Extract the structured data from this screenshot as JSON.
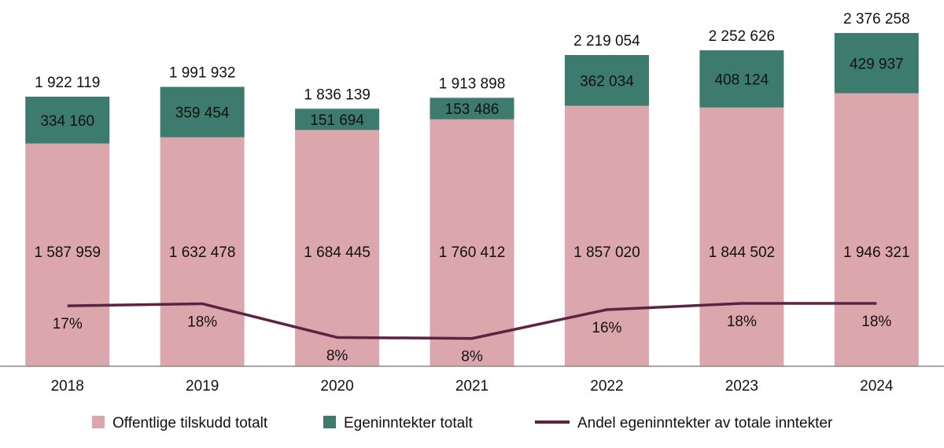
{
  "chart_data": {
    "type": "bar",
    "stacked": true,
    "categories": [
      "2018",
      "2019",
      "2020",
      "2021",
      "2022",
      "2023",
      "2024"
    ],
    "series": [
      {
        "name": "Offentlige tilskudd totalt",
        "kind": "bar",
        "color": "#DBA7AC",
        "values": [
          1587959,
          1632478,
          1684445,
          1760412,
          1857020,
          1844502,
          1946321
        ],
        "labels": [
          "1 587 959",
          "1 632 478",
          "1 684 445",
          "1 760 412",
          "1 857 020",
          "1 844 502",
          "1 946 321"
        ]
      },
      {
        "name": "Egeninntekter totalt",
        "kind": "bar",
        "color": "#3D7B6F",
        "values": [
          334160,
          359454,
          151694,
          153486,
          362034,
          408124,
          429937
        ],
        "labels": [
          "334 160",
          "359 454",
          "151 694",
          "153 486",
          "362 034",
          "408 124",
          "429 937"
        ]
      },
      {
        "name": "Andel egeninntekter av totale inntekter",
        "kind": "line",
        "axis": "secondary",
        "color": "#5E2343",
        "values": [
          17.4,
          18.0,
          8.3,
          8.0,
          16.3,
          18.1,
          18.1
        ],
        "labels": [
          "17%",
          "18%",
          "8%",
          "8%",
          "16%",
          "18%",
          "18%"
        ]
      }
    ],
    "totals": [
      1922119,
      1991932,
      1836139,
      1913898,
      2219054,
      2252626,
      2376258
    ],
    "total_labels": [
      "1 922 119",
      "1 991 932",
      "1 836 139",
      "1 913 898",
      "2 219 054",
      "2 252 626",
      "2 376 258"
    ],
    "ylim": [
      0,
      2600000
    ],
    "y2lim": [
      0,
      105
    ],
    "grid": false,
    "y_axis_visible": false,
    "legend_position": "bottom",
    "title": "",
    "xlabel": "",
    "ylabel": ""
  }
}
